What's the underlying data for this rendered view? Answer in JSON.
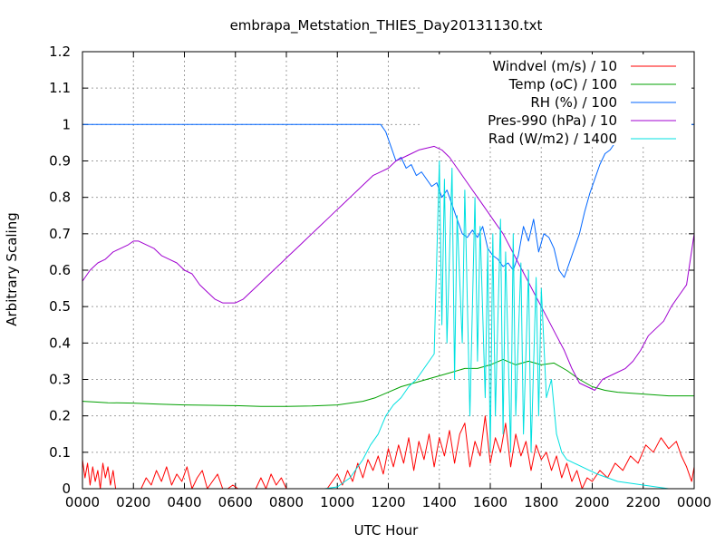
{
  "chart_data": {
    "type": "line",
    "title": "embrapa_Metstation_THIES_Day20131130.txt",
    "xlabel": "UTC Hour",
    "ylabel": "Arbitrary Scaling",
    "xlim": [
      0,
      24
    ],
    "ylim": [
      0,
      1.2
    ],
    "grid": true,
    "legend_position": "top-right",
    "x_ticks": [
      {
        "value": 0,
        "label": "0000"
      },
      {
        "value": 2,
        "label": "0200"
      },
      {
        "value": 4,
        "label": "0400"
      },
      {
        "value": 6,
        "label": "0600"
      },
      {
        "value": 8,
        "label": "0800"
      },
      {
        "value": 10,
        "label": "1000"
      },
      {
        "value": 12,
        "label": "1200"
      },
      {
        "value": 14,
        "label": "1400"
      },
      {
        "value": 16,
        "label": "1600"
      },
      {
        "value": 18,
        "label": "1800"
      },
      {
        "value": 20,
        "label": "2000"
      },
      {
        "value": 22,
        "label": "2200"
      },
      {
        "value": 24,
        "label": "0000"
      }
    ],
    "y_ticks": [
      {
        "value": 0,
        "label": "0"
      },
      {
        "value": 0.1,
        "label": "0.1"
      },
      {
        "value": 0.2,
        "label": "0.2"
      },
      {
        "value": 0.3,
        "label": "0.3"
      },
      {
        "value": 0.4,
        "label": "0.4"
      },
      {
        "value": 0.5,
        "label": "0.5"
      },
      {
        "value": 0.6,
        "label": "0.6"
      },
      {
        "value": 0.7,
        "label": "0.7"
      },
      {
        "value": 0.8,
        "label": "0.8"
      },
      {
        "value": 0.9,
        "label": "0.9"
      },
      {
        "value": 1,
        "label": "1"
      },
      {
        "value": 1.1,
        "label": "1.1"
      },
      {
        "value": 1.2,
        "label": "1.2"
      }
    ],
    "series": [
      {
        "name": "Windvel (m/s) / 10",
        "color": "#ff0000",
        "x": [
          0,
          0.1,
          0.2,
          0.3,
          0.4,
          0.5,
          0.6,
          0.7,
          0.8,
          0.9,
          1.0,
          1.1,
          1.2,
          1.3,
          1.5,
          2.0,
          2.3,
          2.5,
          2.7,
          2.9,
          3.1,
          3.3,
          3.5,
          3.7,
          3.9,
          4.1,
          4.3,
          4.5,
          4.7,
          4.9,
          5.1,
          5.3,
          5.5,
          5.7,
          5.9,
          6.1,
          6.5,
          6.8,
          7.0,
          7.2,
          7.4,
          7.6,
          7.8,
          8.0,
          8.5,
          9.0,
          9.3,
          9.6,
          9.8,
          10.0,
          10.2,
          10.4,
          10.6,
          10.8,
          11.0,
          11.2,
          11.4,
          11.6,
          11.8,
          12.0,
          12.2,
          12.4,
          12.6,
          12.8,
          13.0,
          13.2,
          13.4,
          13.6,
          13.8,
          14.0,
          14.2,
          14.4,
          14.6,
          14.8,
          15.0,
          15.2,
          15.4,
          15.6,
          15.8,
          16.0,
          16.2,
          16.4,
          16.6,
          16.8,
          17.0,
          17.2,
          17.4,
          17.6,
          17.8,
          18.0,
          18.2,
          18.4,
          18.6,
          18.8,
          19.0,
          19.2,
          19.4,
          19.6,
          19.8,
          20.0,
          20.3,
          20.6,
          20.9,
          21.2,
          21.5,
          21.8,
          22.1,
          22.4,
          22.7,
          23.0,
          23.3,
          23.5,
          23.7,
          23.9,
          24.0
        ],
        "values": [
          0.08,
          0.03,
          0.07,
          0.01,
          0.06,
          0.02,
          0.05,
          0.0,
          0.07,
          0.03,
          0.06,
          0.01,
          0.05,
          0.0,
          0.0,
          0.0,
          0.0,
          0.03,
          0.01,
          0.05,
          0.02,
          0.06,
          0.01,
          0.04,
          0.02,
          0.06,
          0.0,
          0.03,
          0.05,
          0.0,
          0.02,
          0.04,
          0.0,
          0.0,
          0.01,
          0.0,
          0.0,
          0.0,
          0.03,
          0.0,
          0.04,
          0.01,
          0.03,
          0.0,
          0.0,
          0.0,
          0.0,
          0.0,
          0.02,
          0.04,
          0.01,
          0.05,
          0.02,
          0.07,
          0.03,
          0.08,
          0.05,
          0.09,
          0.04,
          0.11,
          0.06,
          0.12,
          0.07,
          0.14,
          0.05,
          0.13,
          0.08,
          0.15,
          0.06,
          0.14,
          0.09,
          0.16,
          0.07,
          0.15,
          0.18,
          0.06,
          0.13,
          0.09,
          0.2,
          0.07,
          0.14,
          0.1,
          0.18,
          0.06,
          0.15,
          0.09,
          0.13,
          0.05,
          0.12,
          0.08,
          0.1,
          0.05,
          0.09,
          0.03,
          0.07,
          0.02,
          0.05,
          0.0,
          0.03,
          0.02,
          0.05,
          0.03,
          0.07,
          0.05,
          0.09,
          0.07,
          0.12,
          0.1,
          0.14,
          0.11,
          0.13,
          0.09,
          0.06,
          0.02,
          0.06
        ]
      },
      {
        "name": "Temp (oC) / 100",
        "color": "#00a000",
        "x": [
          0,
          0.5,
          1,
          2,
          3,
          4,
          5,
          6,
          7,
          8,
          9,
          10,
          10.5,
          11,
          11.5,
          12,
          12.5,
          13,
          13.5,
          14,
          14.5,
          15,
          15.5,
          16,
          16.5,
          17,
          17.5,
          18,
          18.5,
          19,
          19.5,
          20,
          20.5,
          21,
          22,
          23,
          24
        ],
        "values": [
          0.24,
          0.238,
          0.236,
          0.235,
          0.232,
          0.23,
          0.229,
          0.228,
          0.226,
          0.226,
          0.227,
          0.23,
          0.235,
          0.24,
          0.25,
          0.265,
          0.28,
          0.29,
          0.3,
          0.31,
          0.32,
          0.33,
          0.33,
          0.34,
          0.355,
          0.34,
          0.35,
          0.34,
          0.345,
          0.325,
          0.3,
          0.28,
          0.27,
          0.265,
          0.26,
          0.255,
          0.255
        ]
      },
      {
        "name": "RH (%) / 100",
        "color": "#0066ff",
        "x": [
          0,
          2,
          4,
          6,
          8,
          10,
          11.7,
          11.9,
          12.0,
          12.1,
          12.3,
          12.5,
          12.7,
          12.9,
          13.1,
          13.3,
          13.5,
          13.7,
          13.9,
          14.1,
          14.3,
          14.5,
          14.7,
          14.9,
          15.1,
          15.3,
          15.5,
          15.7,
          15.9,
          16.1,
          16.3,
          16.5,
          16.7,
          16.9,
          17.1,
          17.3,
          17.5,
          17.7,
          17.9,
          18.1,
          18.3,
          18.5,
          18.7,
          18.9,
          19.1,
          19.3,
          19.5,
          19.7,
          19.9,
          20.1,
          20.3,
          20.5,
          20.7,
          20.9,
          21.1,
          21.5,
          22,
          23,
          24
        ],
        "values": [
          1.0,
          1.0,
          1.0,
          1.0,
          1.0,
          1.0,
          1.0,
          0.98,
          0.96,
          0.94,
          0.9,
          0.91,
          0.88,
          0.89,
          0.86,
          0.87,
          0.85,
          0.83,
          0.84,
          0.8,
          0.82,
          0.78,
          0.74,
          0.7,
          0.69,
          0.71,
          0.69,
          0.72,
          0.66,
          0.64,
          0.63,
          0.61,
          0.62,
          0.6,
          0.64,
          0.72,
          0.68,
          0.74,
          0.65,
          0.7,
          0.69,
          0.66,
          0.6,
          0.58,
          0.62,
          0.66,
          0.7,
          0.76,
          0.81,
          0.85,
          0.89,
          0.92,
          0.93,
          0.95,
          0.96,
          0.98,
          1.0,
          1.0,
          1.0
        ]
      },
      {
        "name": "Pres-990 (hPa) / 10",
        "color": "#a000d0",
        "x": [
          0,
          0.3,
          0.6,
          0.9,
          1.2,
          1.5,
          1.8,
          2.0,
          2.2,
          2.5,
          2.8,
          3.1,
          3.4,
          3.7,
          4.0,
          4.3,
          4.6,
          4.9,
          5.2,
          5.5,
          5.8,
          6.0,
          6.3,
          6.6,
          6.9,
          7.2,
          7.5,
          7.8,
          8.1,
          8.4,
          8.7,
          9.0,
          9.3,
          9.6,
          9.9,
          10.2,
          10.5,
          10.8,
          11.1,
          11.4,
          11.7,
          12.0,
          12.3,
          12.6,
          12.9,
          13.2,
          13.5,
          13.8,
          14.1,
          14.4,
          14.7,
          15.0,
          15.3,
          15.6,
          15.9,
          16.2,
          16.5,
          16.8,
          17.1,
          17.4,
          17.7,
          18.0,
          18.3,
          18.6,
          18.9,
          19.2,
          19.5,
          19.8,
          20.1,
          20.4,
          20.7,
          21.0,
          21.3,
          21.6,
          21.9,
          22.2,
          22.5,
          22.8,
          23.1,
          23.4,
          23.7,
          24.0
        ],
        "values": [
          0.57,
          0.6,
          0.62,
          0.63,
          0.65,
          0.66,
          0.67,
          0.68,
          0.68,
          0.67,
          0.66,
          0.64,
          0.63,
          0.62,
          0.6,
          0.59,
          0.56,
          0.54,
          0.52,
          0.51,
          0.51,
          0.51,
          0.52,
          0.54,
          0.56,
          0.58,
          0.6,
          0.62,
          0.64,
          0.66,
          0.68,
          0.7,
          0.72,
          0.74,
          0.76,
          0.78,
          0.8,
          0.82,
          0.84,
          0.86,
          0.87,
          0.88,
          0.9,
          0.91,
          0.92,
          0.93,
          0.935,
          0.94,
          0.93,
          0.91,
          0.88,
          0.85,
          0.82,
          0.79,
          0.76,
          0.73,
          0.7,
          0.66,
          0.62,
          0.58,
          0.54,
          0.5,
          0.46,
          0.42,
          0.38,
          0.33,
          0.29,
          0.28,
          0.27,
          0.3,
          0.31,
          0.32,
          0.33,
          0.35,
          0.38,
          0.42,
          0.44,
          0.46,
          0.5,
          0.53,
          0.56,
          0.7
        ]
      },
      {
        "name": "Rad (W/m2) / 1400",
        "color": "#00e0e0",
        "x": [
          0,
          2,
          4,
          6,
          8,
          9.5,
          10.0,
          10.5,
          11.0,
          11.3,
          11.6,
          11.9,
          12.2,
          12.5,
          12.8,
          13.1,
          13.4,
          13.6,
          13.8,
          14.0,
          14.1,
          14.2,
          14.3,
          14.5,
          14.6,
          14.7,
          14.9,
          15.0,
          15.2,
          15.4,
          15.5,
          15.6,
          15.8,
          15.9,
          16.0,
          16.1,
          16.2,
          16.4,
          16.5,
          16.6,
          16.8,
          16.9,
          17.0,
          17.2,
          17.3,
          17.5,
          17.6,
          17.8,
          17.9,
          18.0,
          18.2,
          18.4,
          18.6,
          18.8,
          19.0,
          19.3,
          19.6,
          19.9,
          20.2,
          20.6,
          21.0,
          21.5,
          22,
          23,
          24
        ],
        "values": [
          0.0,
          0.0,
          0.0,
          0.0,
          0.0,
          0.0,
          0.005,
          0.03,
          0.08,
          0.12,
          0.15,
          0.2,
          0.23,
          0.25,
          0.28,
          0.3,
          0.33,
          0.35,
          0.37,
          0.9,
          0.45,
          0.85,
          0.4,
          0.88,
          0.3,
          0.75,
          0.4,
          0.82,
          0.2,
          0.8,
          0.35,
          0.72,
          0.25,
          0.66,
          0.1,
          0.7,
          0.2,
          0.74,
          0.15,
          0.65,
          0.1,
          0.7,
          0.2,
          0.62,
          0.15,
          0.6,
          0.1,
          0.58,
          0.2,
          0.55,
          0.25,
          0.3,
          0.15,
          0.1,
          0.08,
          0.07,
          0.06,
          0.05,
          0.04,
          0.03,
          0.02,
          0.015,
          0.01,
          0.0,
          0.0
        ]
      }
    ]
  }
}
